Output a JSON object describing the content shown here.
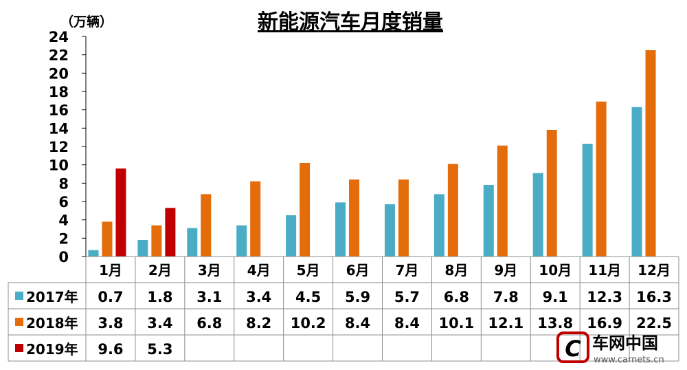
{
  "chart_data": {
    "type": "bar",
    "title": "新能源汽车月度销量",
    "unit_label": "（万辆）",
    "categories": [
      "1月",
      "2月",
      "3月",
      "4月",
      "5月",
      "6月",
      "7月",
      "8月",
      "9月",
      "10月",
      "11月",
      "12月"
    ],
    "ylim": [
      0,
      24
    ],
    "yticks": [
      0,
      2,
      4,
      6,
      8,
      10,
      12,
      14,
      16,
      18,
      20,
      22,
      24
    ],
    "grid": false,
    "legend": "data-table-left",
    "series": [
      {
        "name": "2017年",
        "color": "#4BACC6",
        "values": [
          0.7,
          1.8,
          3.1,
          3.4,
          4.5,
          5.9,
          5.7,
          6.8,
          7.8,
          9.1,
          12.3,
          16.3
        ],
        "labels": [
          "0.7",
          "1.8",
          "3.1",
          "3.4",
          "4.5",
          "5.9",
          "5.7",
          "6.8",
          "7.8",
          "9.1",
          "12.3",
          "16.3"
        ]
      },
      {
        "name": "2018年",
        "color": "#E46C0A",
        "values": [
          3.8,
          3.4,
          6.8,
          8.2,
          10.2,
          8.4,
          8.4,
          10.1,
          12.1,
          13.8,
          16.9,
          22.5
        ],
        "labels": [
          "3.8",
          "3.4",
          "6.8",
          "8.2",
          "10.2",
          "8.4",
          "8.4",
          "10.1",
          "12.1",
          "13.8",
          "16.9",
          "22.5"
        ]
      },
      {
        "name": "2019年",
        "color": "#C00000",
        "values": [
          9.6,
          5.3,
          null,
          null,
          null,
          null,
          null,
          null,
          null,
          null,
          null,
          null
        ],
        "labels": [
          "9.6",
          "5.3",
          "",
          "",
          "",
          "",
          "",
          "",
          "",
          "",
          "",
          ""
        ]
      }
    ]
  },
  "watermark": {
    "brand": "车网中国",
    "url": "www.carnets.cn",
    "logo_text": "C",
    "color": "#C00000"
  }
}
